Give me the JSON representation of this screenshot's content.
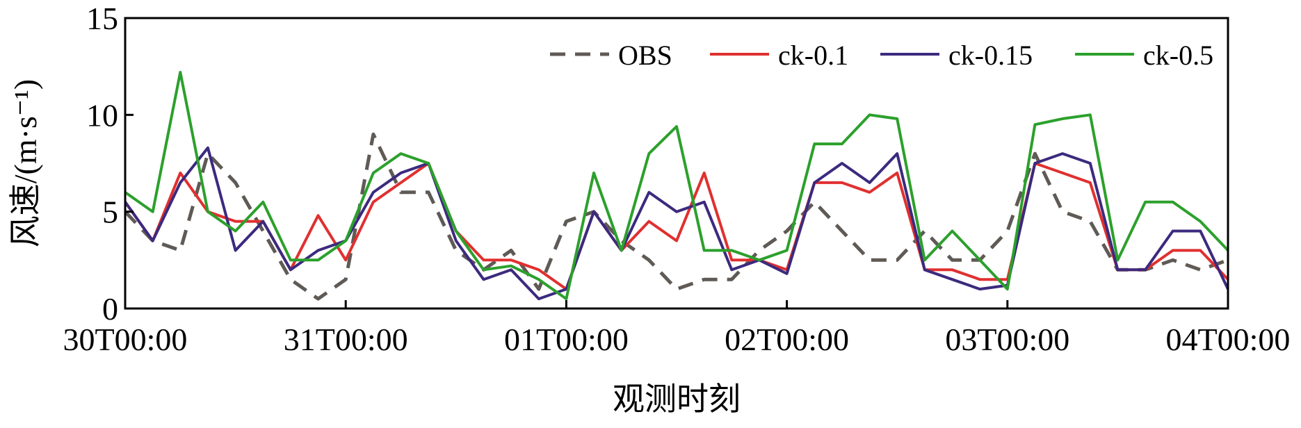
{
  "chart_data": {
    "type": "line",
    "xlabel": "观测时刻",
    "ylabel": "风速/(m·s⁻¹)",
    "x": [
      0,
      3,
      6,
      9,
      12,
      15,
      18,
      21,
      24,
      27,
      30,
      33,
      36,
      39,
      42,
      45,
      48,
      51,
      54,
      57,
      60,
      63,
      66,
      69,
      72,
      75,
      78,
      81,
      84,
      87,
      90,
      93,
      96,
      99,
      102,
      105,
      108,
      111,
      114,
      117,
      120
    ],
    "xlim": [
      0,
      120
    ],
    "xticks": [
      {
        "value": 0,
        "label": "30T00:00"
      },
      {
        "value": 24,
        "label": "31T00:00"
      },
      {
        "value": 48,
        "label": "01T00:00"
      },
      {
        "value": 72,
        "label": "02T00:00"
      },
      {
        "value": 96,
        "label": "03T00:00"
      },
      {
        "value": 120,
        "label": "04T00:00"
      }
    ],
    "ylim": [
      0,
      15
    ],
    "yticks": [
      0,
      5,
      10,
      15
    ],
    "legend": "upper right",
    "series": [
      {
        "name": "OBS",
        "color": "#5f5a55",
        "dash": true,
        "values": [
          5,
          3.5,
          3,
          8,
          6.5,
          4,
          1.5,
          0.5,
          1.5,
          9,
          6,
          6,
          3,
          2,
          3,
          1,
          4.5,
          5,
          3.5,
          2.5,
          1,
          1.5,
          1.5,
          3,
          4,
          5.5,
          4,
          2.5,
          2.5,
          4,
          2.5,
          2.5,
          4,
          8,
          5,
          4.5,
          2,
          2,
          2.5,
          2,
          2.5
        ]
      },
      {
        "name": "ck-0.1",
        "color": "#e03030",
        "values": [
          5.5,
          3.5,
          7,
          5,
          4.5,
          4.5,
          2,
          4.8,
          2.5,
          5.5,
          6.5,
          7.5,
          4,
          2.5,
          2.5,
          2,
          1,
          5,
          3,
          4.5,
          3.5,
          7,
          2.5,
          2.5,
          2,
          6.5,
          6.5,
          6,
          7,
          2,
          2,
          1.5,
          1.5,
          7.5,
          7,
          6.5,
          2,
          2,
          3,
          3,
          1.5
        ]
      },
      {
        "name": "ck-0.15",
        "color": "#3c2a7e",
        "values": [
          5.5,
          3.5,
          6.5,
          8.3,
          3,
          4.5,
          2,
          3,
          3.5,
          6,
          7,
          7.5,
          3.5,
          1.5,
          2,
          0.5,
          1,
          5,
          3,
          6,
          5,
          5.5,
          2,
          2.5,
          1.8,
          6.5,
          7.5,
          6.5,
          8,
          2,
          1.5,
          1,
          1.2,
          7.5,
          8,
          7.5,
          2,
          2,
          4,
          4,
          1
        ]
      },
      {
        "name": "ck-0.5",
        "color": "#2ca02c",
        "values": [
          6,
          5,
          12.2,
          5,
          4,
          5.5,
          2.5,
          2.5,
          3.5,
          7,
          8,
          7.5,
          4,
          2,
          2.2,
          1.5,
          0.5,
          7,
          3,
          8,
          9.4,
          3,
          3,
          2.5,
          3,
          8.5,
          8.5,
          10,
          9.8,
          2.5,
          4,
          2.5,
          1,
          9.5,
          9.8,
          10,
          2.5,
          5.5,
          5.5,
          4.5,
          3
        ]
      }
    ]
  }
}
